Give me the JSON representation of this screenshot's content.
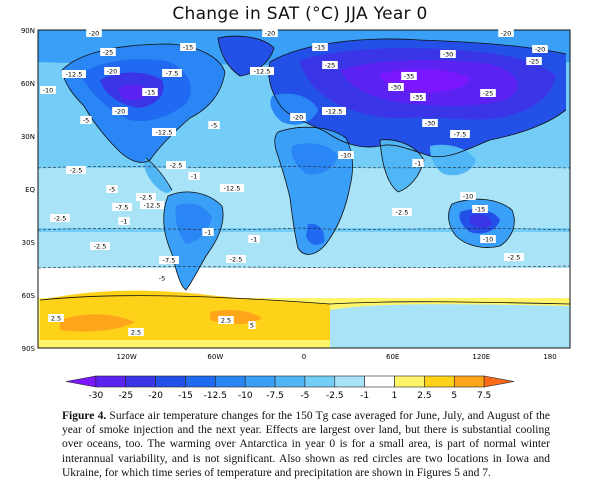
{
  "title": "Change in SAT (°C) JJA Year 0",
  "axes": {
    "lat_labels": [
      "90N",
      "60N",
      "30N",
      "EQ",
      "30S",
      "60S",
      "90S"
    ],
    "lon_labels": [
      "120W",
      "60W",
      "0",
      "60E",
      "120E",
      "180"
    ]
  },
  "colorbar": {
    "levels": [
      "-30",
      "-25",
      "-20",
      "-15",
      "-12.5",
      "-10",
      "-7.5",
      "-5",
      "-2.5",
      "-1",
      "1",
      "2.5",
      "5",
      "7.5"
    ],
    "colors": [
      "#7a17ff",
      "#5b22f2",
      "#3a36e8",
      "#2350e6",
      "#1f6af0",
      "#2a86f4",
      "#3a9ff6",
      "#50b6f5",
      "#74cdf6",
      "#a8e3f8",
      "#ffffff",
      "#fff56a",
      "#ffd21a",
      "#ffa51a",
      "#ff6a1a"
    ]
  },
  "contour_labels": [
    {
      "text": "-20"
    },
    {
      "text": "-20"
    },
    {
      "text": "-20"
    },
    {
      "text": "-25"
    },
    {
      "text": "-15"
    },
    {
      "text": "-15"
    },
    {
      "text": "-12.5"
    },
    {
      "text": "-12.5"
    },
    {
      "text": "-20"
    },
    {
      "text": "-10"
    },
    {
      "text": "-5"
    },
    {
      "text": "-15"
    },
    {
      "text": "-20"
    },
    {
      "text": "-7.5"
    },
    {
      "text": "-12.5"
    },
    {
      "text": "-30"
    },
    {
      "text": "-35"
    },
    {
      "text": "-25"
    },
    {
      "text": "-25"
    },
    {
      "text": "-30"
    },
    {
      "text": "-35"
    },
    {
      "text": "-30"
    },
    {
      "text": "-7.5"
    },
    {
      "text": "-20"
    },
    {
      "text": "-12.5"
    },
    {
      "text": "-5"
    },
    {
      "text": "-2.5"
    },
    {
      "text": "-10"
    },
    {
      "text": "-12.5"
    },
    {
      "text": "-1"
    },
    {
      "text": "-2.5"
    },
    {
      "text": "-5"
    },
    {
      "text": "-7.5"
    },
    {
      "text": "-2.5"
    },
    {
      "text": "-2.5"
    },
    {
      "text": "-12.5"
    },
    {
      "text": "-1"
    },
    {
      "text": "-2.5"
    },
    {
      "text": "-1"
    },
    {
      "text": "-15"
    },
    {
      "text": "-10"
    },
    {
      "text": "-1"
    },
    {
      "text": "-2.5"
    },
    {
      "text": "-1"
    },
    {
      "text": "-7.5"
    },
    {
      "text": "-5"
    },
    {
      "text": "-2.5"
    },
    {
      "text": "2.5"
    },
    {
      "text": "2.5"
    },
    {
      "text": "2.5"
    },
    {
      "text": "5"
    },
    {
      "text": "-2.5"
    },
    {
      "text": "-10"
    },
    {
      "text": "-25"
    },
    {
      "text": "-20"
    }
  ],
  "caption": {
    "label": "Figure 4.",
    "text": "Surface air temperature changes for the 150 Tg case averaged for June, July, and August of the year of smoke injection and the next year. Effects are largest over land, but there is substantial cooling over oceans, too. The warming over Antarctica in year 0 is for a small area, is part of normal winter interannual variability, and is not significant. Also shown as red circles are two locations in Iowa and Ukraine, for which time series of temperature and precipitation are shown in Figures 5 and 7."
  }
}
